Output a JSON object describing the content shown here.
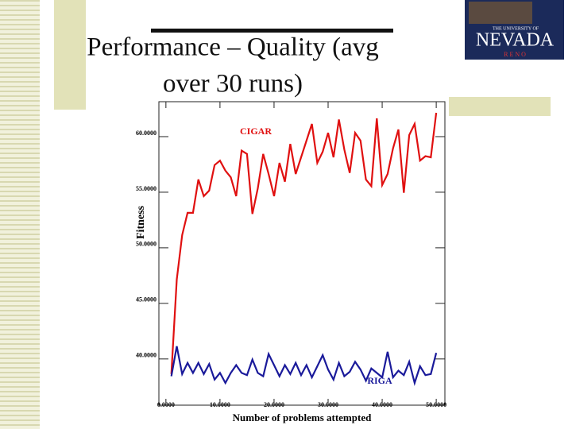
{
  "logo": {
    "top": "THE UNIVERSITY OF",
    "name": "NEVADA",
    "bottom": "R E N O"
  },
  "chart_data": {
    "type": "line",
    "title": [
      "Performance – Quality (avg",
      "over 30 runs)"
    ],
    "x_label": "Number of problems attempted",
    "y_label": "Fitness",
    "x": [
      1,
      2,
      3,
      4,
      5,
      6,
      7,
      8,
      9,
      10,
      11,
      12,
      13,
      14,
      15,
      16,
      17,
      18,
      19,
      20,
      21,
      22,
      23,
      24,
      25,
      26,
      27,
      28,
      29,
      30,
      31,
      32,
      33,
      34,
      35,
      36,
      37,
      38,
      39,
      40,
      41,
      42,
      43,
      44,
      45,
      46,
      47,
      48,
      49,
      50
    ],
    "series": [
      {
        "name": "CIGAR",
        "color": "#e01010",
        "values": [
          38.5,
          47,
          51,
          53,
          53,
          56,
          54.5,
          55,
          57.3,
          57.7,
          56.8,
          56.2,
          54.5,
          58.6,
          58.3,
          52.9,
          55.2,
          58.3,
          56.5,
          54.5,
          57.5,
          55.8,
          59.2,
          56.5,
          58,
          59.5,
          61,
          57.5,
          58.5,
          60.2,
          58,
          61.4,
          58.7,
          56.6,
          60.2,
          59.5,
          56,
          55.4,
          61.5,
          55.5,
          56.5,
          58.8,
          60.5,
          54.8,
          60,
          61,
          57.7,
          58.1,
          58,
          62
        ]
      },
      {
        "name": "RIGA",
        "color": "#1a1a9a",
        "values": [
          38.3,
          41,
          38.5,
          39.5,
          38.6,
          39.5,
          38.5,
          39.4,
          38,
          38.6,
          37.7,
          38.6,
          39.3,
          38.6,
          38.4,
          39.8,
          38.6,
          38.3,
          40.3,
          39.3,
          38.3,
          39.3,
          38.5,
          39.5,
          38.4,
          39.3,
          38.2,
          39.2,
          40.2,
          38.9,
          38,
          39.5,
          38.3,
          38.7,
          39.6,
          38.9,
          37.9,
          39,
          38.6,
          38.2,
          40.5,
          38.2,
          38.8,
          38.4,
          39.6,
          37.7,
          39.2,
          38.4,
          38.5,
          40.4
        ]
      }
    ],
    "xlim": [
      -1.3,
      51.6
    ],
    "ylim": [
      35.7,
      63
    ],
    "xticks": [
      {
        "value": 0,
        "label": "0.0000"
      },
      {
        "value": 10,
        "label": "10.0000"
      },
      {
        "value": 20,
        "label": "20.0000"
      },
      {
        "value": 30,
        "label": "30.0000"
      },
      {
        "value": 40,
        "label": "40.0000"
      },
      {
        "value": 50,
        "label": "50.0000"
      }
    ],
    "yticks": [
      {
        "value": 40,
        "label": "40.0000"
      },
      {
        "value": 45,
        "label": "45.0000"
      },
      {
        "value": 50,
        "label": "50.0000"
      },
      {
        "value": 55,
        "label": "55.0000"
      },
      {
        "value": 60,
        "label": "60.0000"
      }
    ]
  }
}
